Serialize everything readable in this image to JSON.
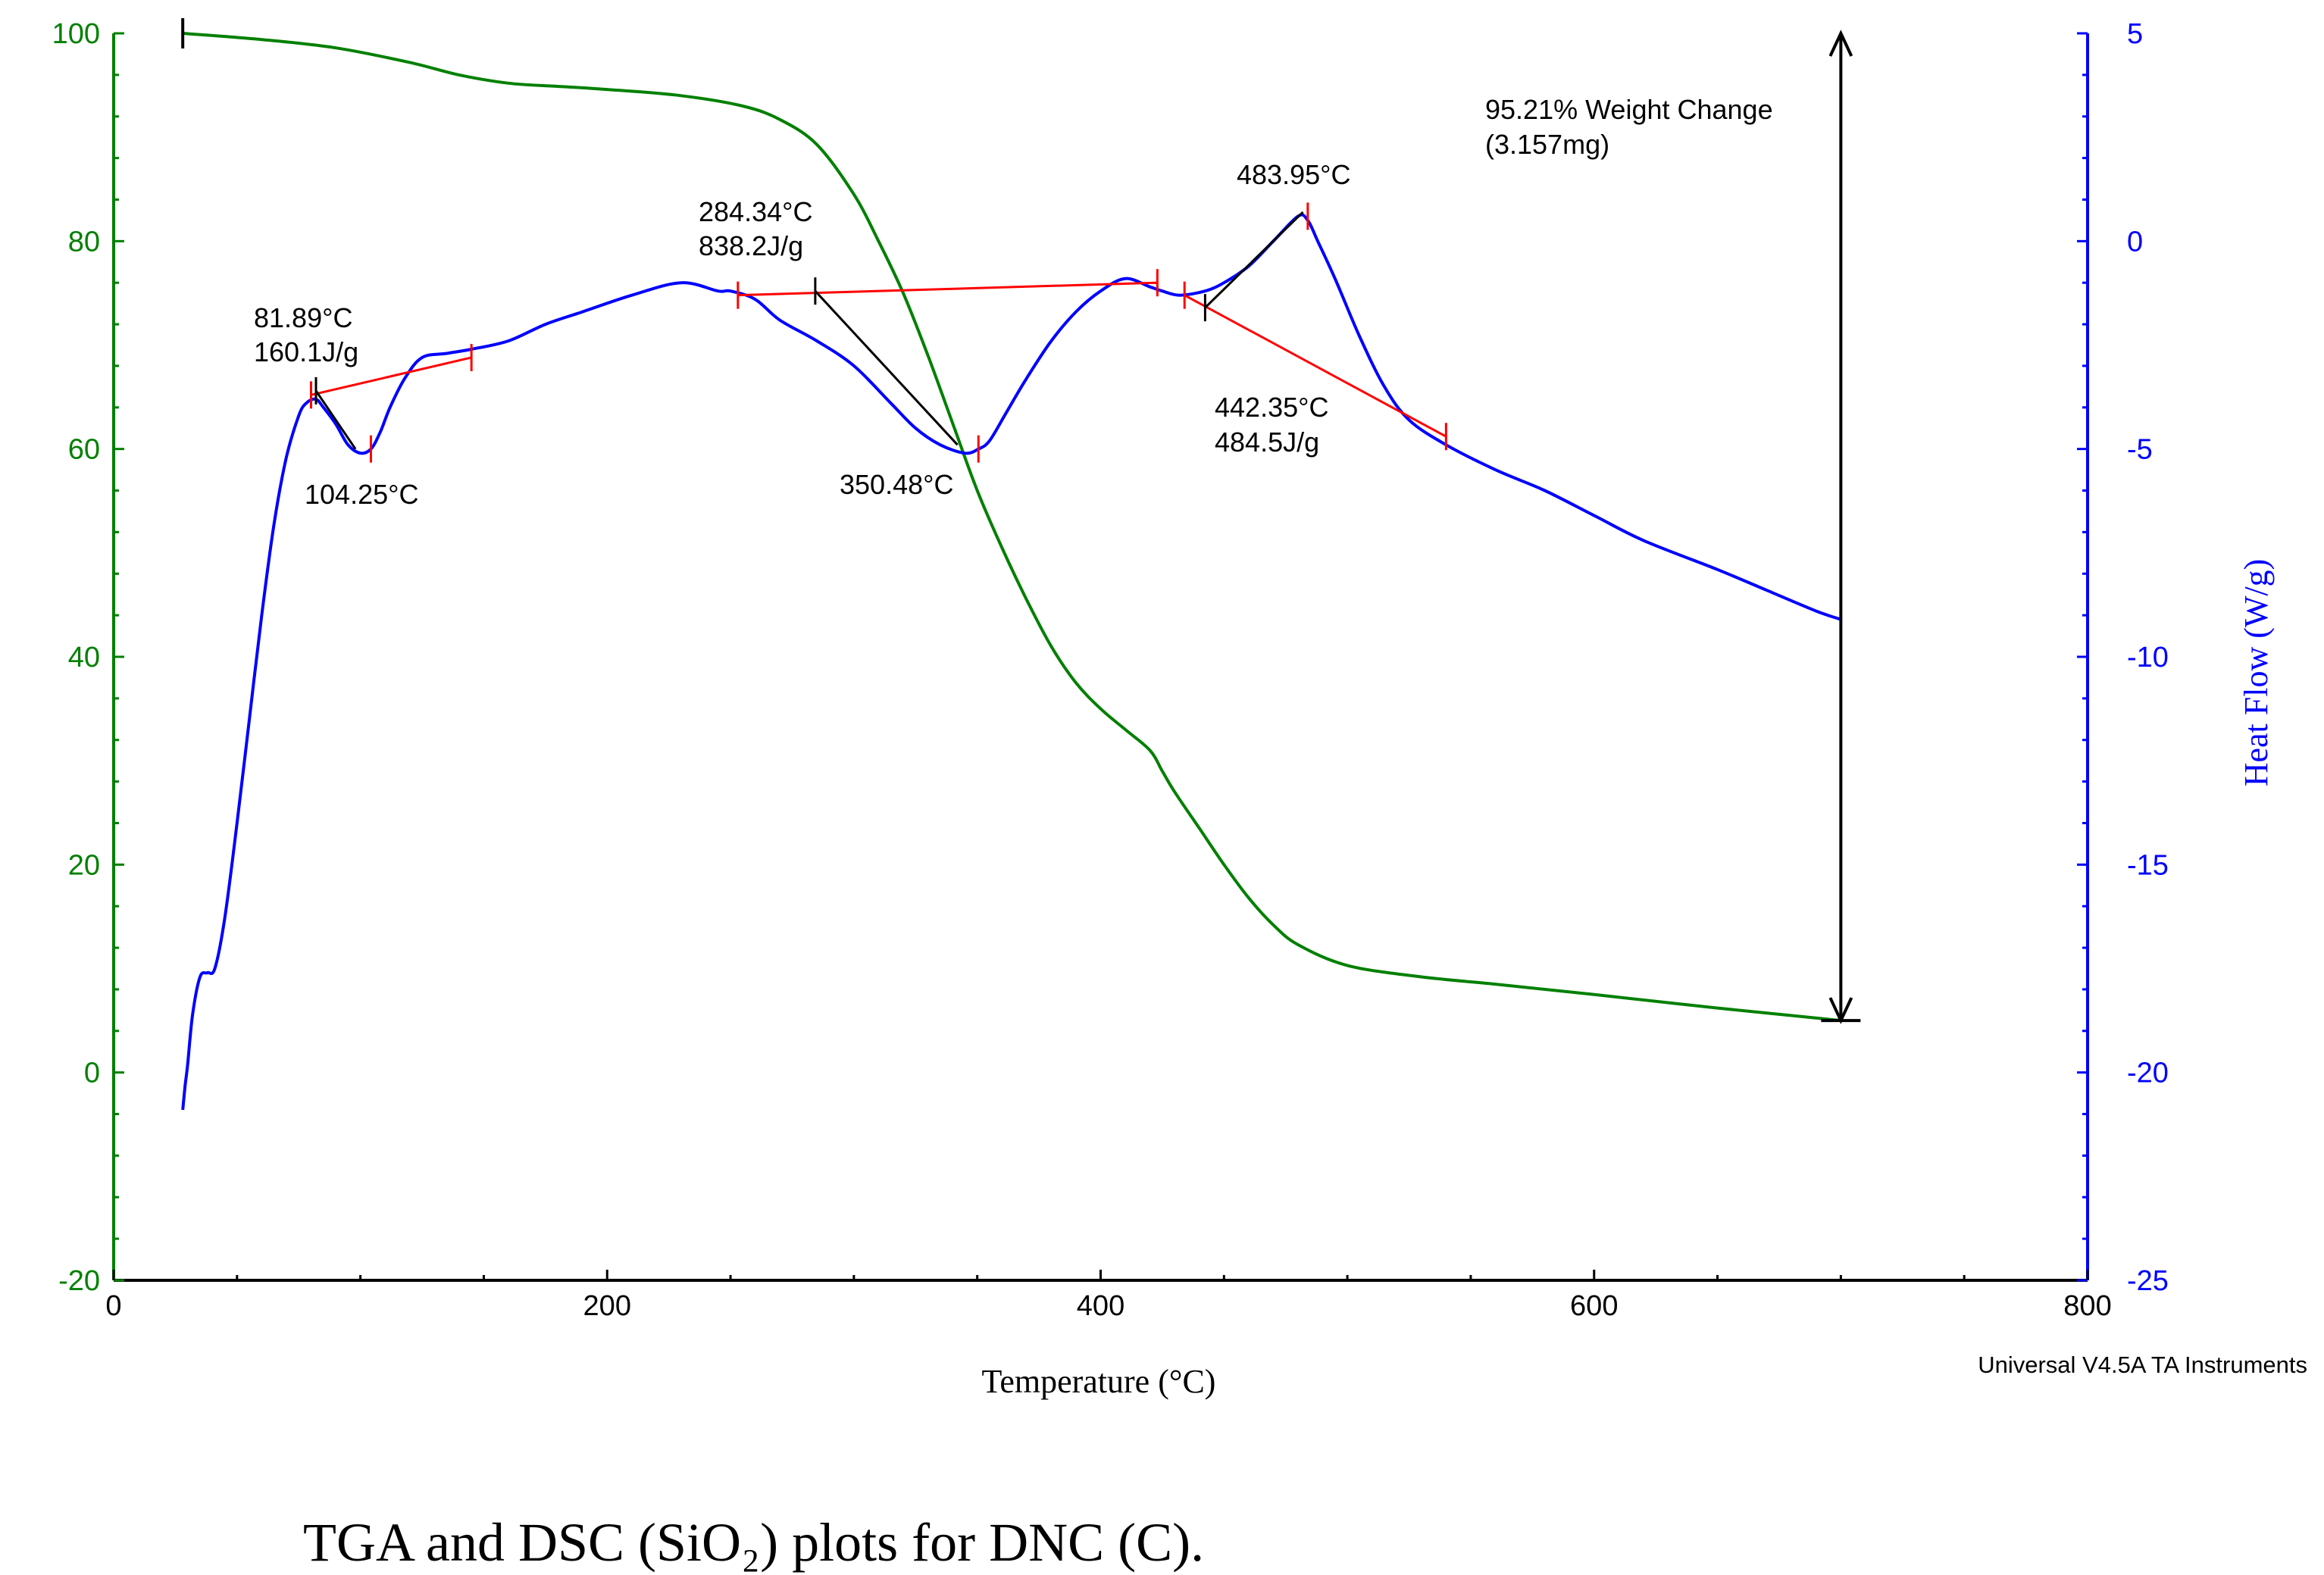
{
  "chart_data": {
    "type": "line",
    "title": "",
    "xlabel": "Temperature (°C)",
    "ylabel_left": "",
    "ylabel_right": "Heat Flow (W/g)",
    "xlim": [
      0,
      800
    ],
    "ylim_left": [
      -20,
      100
    ],
    "ylim_right": [
      -25,
      5
    ],
    "x_ticks": [
      "0",
      "200",
      "400",
      "600",
      "800"
    ],
    "left_ticks": [
      "100",
      "80",
      "60",
      "40",
      "20",
      "0",
      "-20"
    ],
    "right_ticks": [
      "5",
      "0",
      "-5",
      "-10",
      "-15",
      "-20",
      "-25"
    ],
    "colors": {
      "tga": "#008000",
      "dsc": "#0000ff",
      "baseline": "#ff0000",
      "tangent": "#000000"
    },
    "series": [
      {
        "name": "TGA weight (%)",
        "axis": "left",
        "x": [
          28,
          60,
          90,
          120,
          140,
          160,
          180,
          200,
          230,
          255,
          270,
          285,
          300,
          310,
          320,
          330,
          340,
          350,
          360,
          370,
          380,
          390,
          400,
          410,
          420,
          425,
          430,
          440,
          450,
          460,
          470,
          480,
          500,
          530,
          560,
          600,
          650,
          700
        ],
        "y": [
          100,
          99.4,
          98.6,
          97.2,
          96,
          95.2,
          94.9,
          94.6,
          94.0,
          93.0,
          91.7,
          89.3,
          84.5,
          80,
          75,
          69,
          62.5,
          56,
          50.5,
          45.5,
          41,
          37.5,
          35,
          33,
          31,
          29,
          27,
          23.5,
          20,
          16.8,
          14.2,
          12.3,
          10.3,
          9.2,
          8.5,
          7.5,
          6.2,
          5.0
        ]
      },
      {
        "name": "DSC heat flow (W/g)",
        "axis": "right",
        "x": [
          28,
          29,
          30,
          32,
          35,
          38,
          41,
          45,
          50,
          55,
          60,
          65,
          70,
          75,
          78,
          81.89,
          85,
          90,
          95,
          100,
          104.25,
          108,
          112,
          118,
          125,
          135,
          145,
          160,
          175,
          190,
          210,
          230,
          245,
          250,
          260,
          270,
          285,
          300,
          315,
          325,
          335,
          345,
          350.48,
          355,
          362,
          370,
          380,
          390,
          400,
          410,
          420,
          425,
          432,
          442.35,
          450,
          460,
          470,
          480,
          483.95,
          488,
          495,
          505,
          515,
          525,
          540,
          560,
          580,
          600,
          620,
          650,
          670,
          690,
          700
        ],
        "y": [
          -20.9,
          -20.3,
          -19.8,
          -18.6,
          -17.7,
          -17.6,
          -17.5,
          -16.3,
          -14,
          -11.5,
          -9,
          -6.8,
          -5.2,
          -4.2,
          -3.9,
          -3.8,
          -4.0,
          -4.4,
          -4.9,
          -5.1,
          -5.0,
          -4.6,
          -4.0,
          -3.3,
          -2.8,
          -2.7,
          -2.6,
          -2.4,
          -2.0,
          -1.7,
          -1.3,
          -1.0,
          -1.2,
          -1.2,
          -1.4,
          -1.9,
          -2.4,
          -3.0,
          -3.9,
          -4.5,
          -4.9,
          -5.1,
          -5.0,
          -4.8,
          -4.1,
          -3.3,
          -2.4,
          -1.7,
          -1.2,
          -0.9,
          -1.1,
          -1.2,
          -1.3,
          -1.2,
          -1.0,
          -0.6,
          0.0,
          0.6,
          0.5,
          0.0,
          -0.9,
          -2.3,
          -3.5,
          -4.3,
          -4.9,
          -5.5,
          -6.0,
          -6.6,
          -7.2,
          -7.9,
          -8.4,
          -8.9,
          -9.1
        ]
      }
    ],
    "weight_change": {
      "from_x": 700,
      "from_y": 100,
      "to_x": 700,
      "to_y": 5.0,
      "label_line1": "95.21% Weight Change",
      "label_line2": "(3.157mg)"
    },
    "peaks": [
      {
        "onset_label": "81.89°C",
        "enthalpy_label": "160.1J/g",
        "peak_label": "104.25°C",
        "baseline": [
          [
            80,
            -3.7
          ],
          [
            145,
            -2.8
          ]
        ],
        "tangent": [
          [
            82,
            -3.6
          ],
          [
            98,
            -5.0
          ]
        ],
        "peak_x": 104.25,
        "peak_y": -5.0
      },
      {
        "onset_label": "284.34°C",
        "enthalpy_label": "838.2J/g",
        "peak_label": "350.48°C",
        "baseline": [
          [
            253,
            -1.3
          ],
          [
            423,
            -1.0
          ]
        ],
        "tangent": [
          [
            284.34,
            -1.2
          ],
          [
            342,
            -4.9
          ]
        ],
        "peak_x": 350.48,
        "peak_y": -5.0
      },
      {
        "onset_label": "442.35°C",
        "enthalpy_label": "484.5J/g",
        "peak_label": "483.95°C",
        "baseline": [
          [
            434,
            -1.3
          ],
          [
            540,
            -4.7
          ]
        ],
        "tangent": [
          [
            442.35,
            -1.6
          ],
          [
            482,
            0.7
          ]
        ],
        "peak_x": 483.95,
        "peak_y": 0.6
      }
    ],
    "footer": "Universal V4.5A TA Instruments"
  },
  "caption": "TGA and DSC (SiO₂) plots for DNC (C)."
}
